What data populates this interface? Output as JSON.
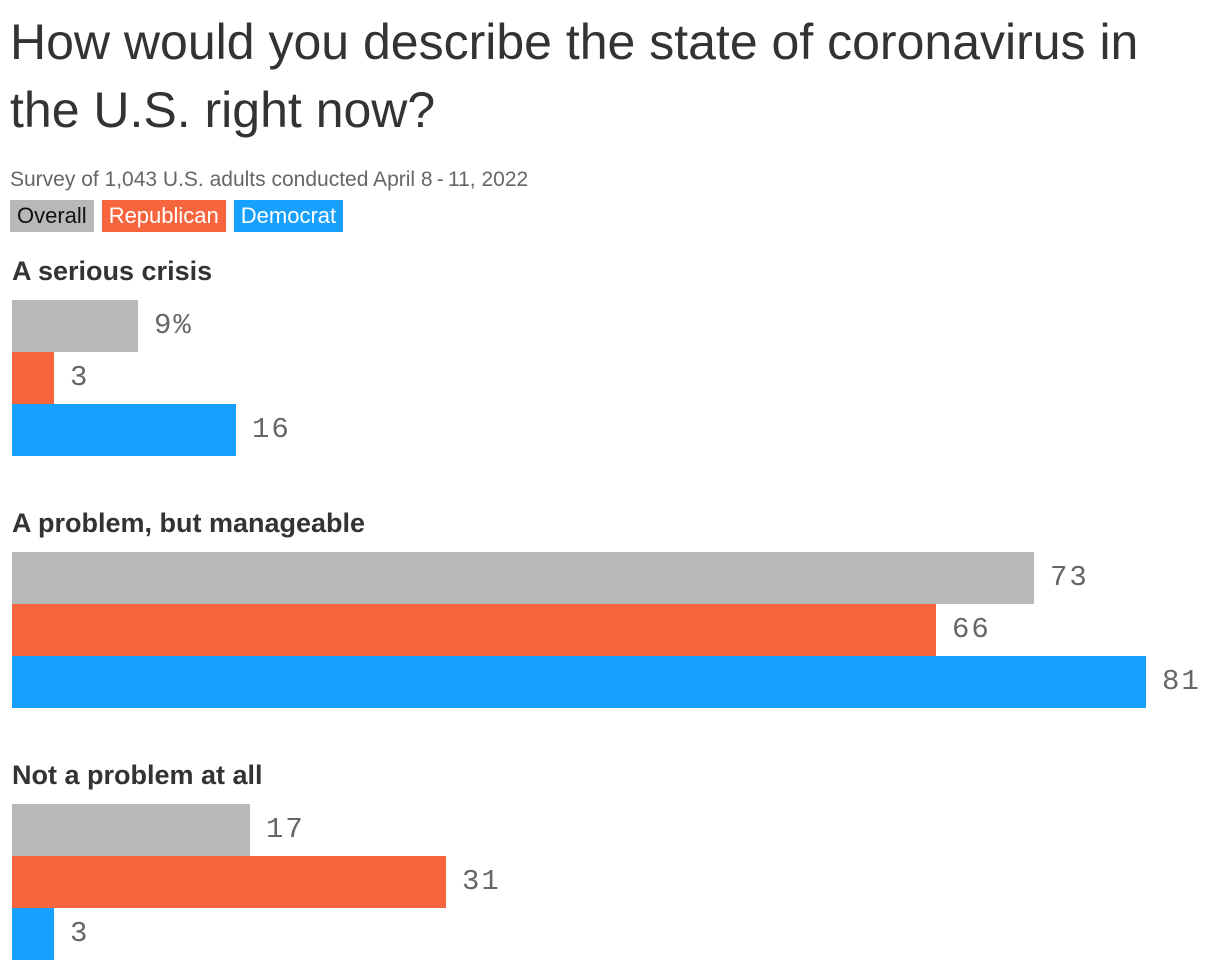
{
  "colors": {
    "overall": "#b8b8b8",
    "republican": "#f7653f",
    "democrat": "#18a0ff",
    "text": "#333333",
    "muted": "#666666"
  },
  "title": "How would you describe the state of coronavirus in the U.S. right now?",
  "subtitle": "Survey of 1,043 U.S. adults conducted April 8 - 11, 2022",
  "legend": {
    "overall": "Overall",
    "republican": "Republican",
    "democrat": "Democrat"
  },
  "chart_data": {
    "type": "bar",
    "orientation": "horizontal",
    "categories": [
      "A serious crisis",
      "A problem, but manageable",
      "Not a problem at all"
    ],
    "series": [
      {
        "name": "Overall",
        "values": [
          9,
          73,
          17
        ]
      },
      {
        "name": "Republican",
        "values": [
          3,
          66,
          31
        ]
      },
      {
        "name": "Democrat",
        "values": [
          16,
          81,
          3
        ]
      }
    ],
    "value_labels": [
      [
        "9%",
        "3",
        "16"
      ],
      [
        "73",
        "66",
        "81"
      ],
      [
        "17",
        "31",
        "3"
      ]
    ],
    "xlim": [
      0,
      81
    ],
    "grid": false,
    "legend_position": "top-left"
  }
}
